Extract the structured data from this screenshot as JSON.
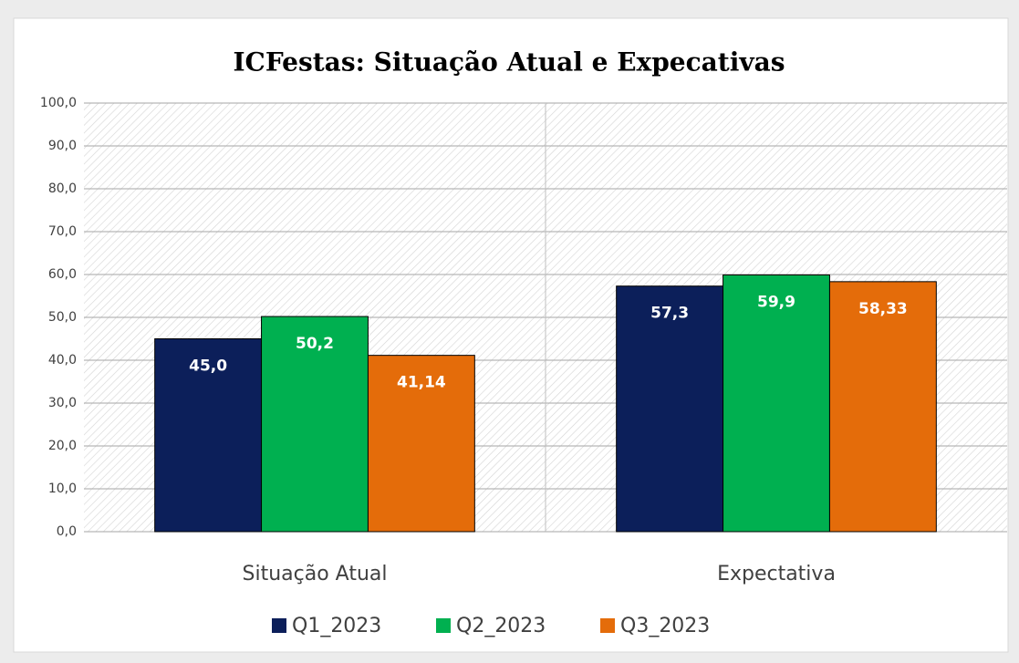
{
  "chart_data": {
    "type": "bar",
    "title": "ICFestas: Situação Atual e Expecativas",
    "categories": [
      "Situação Atual",
      "Expectativa"
    ],
    "series": [
      {
        "name": "Q1_2023",
        "color": "#0c1f5a",
        "values": [
          45.0,
          57.3
        ],
        "value_labels": [
          "45,0",
          "57,3"
        ]
      },
      {
        "name": "Q2_2023",
        "color": "#00b050",
        "values": [
          50.2,
          59.9
        ],
        "value_labels": [
          "50,2",
          "59,9"
        ]
      },
      {
        "name": "Q3_2023",
        "color": "#e46c0a",
        "values": [
          41.14,
          58.33
        ],
        "value_labels": [
          "41,14",
          "58,33"
        ]
      }
    ],
    "ylim": [
      0,
      100
    ],
    "yticks": [
      {
        "value": 0,
        "label": "0,0"
      },
      {
        "value": 10,
        "label": "10,0"
      },
      {
        "value": 20,
        "label": "20,0"
      },
      {
        "value": 30,
        "label": "30,0"
      },
      {
        "value": 40,
        "label": "40,0"
      },
      {
        "value": 50,
        "label": "50,0"
      },
      {
        "value": 60,
        "label": "60,0"
      },
      {
        "value": 70,
        "label": "70,0"
      },
      {
        "value": 80,
        "label": "80,0"
      },
      {
        "value": 90,
        "label": "90,0"
      },
      {
        "value": 100,
        "label": "100,0"
      }
    ],
    "grid": true,
    "legend": "bottom"
  }
}
